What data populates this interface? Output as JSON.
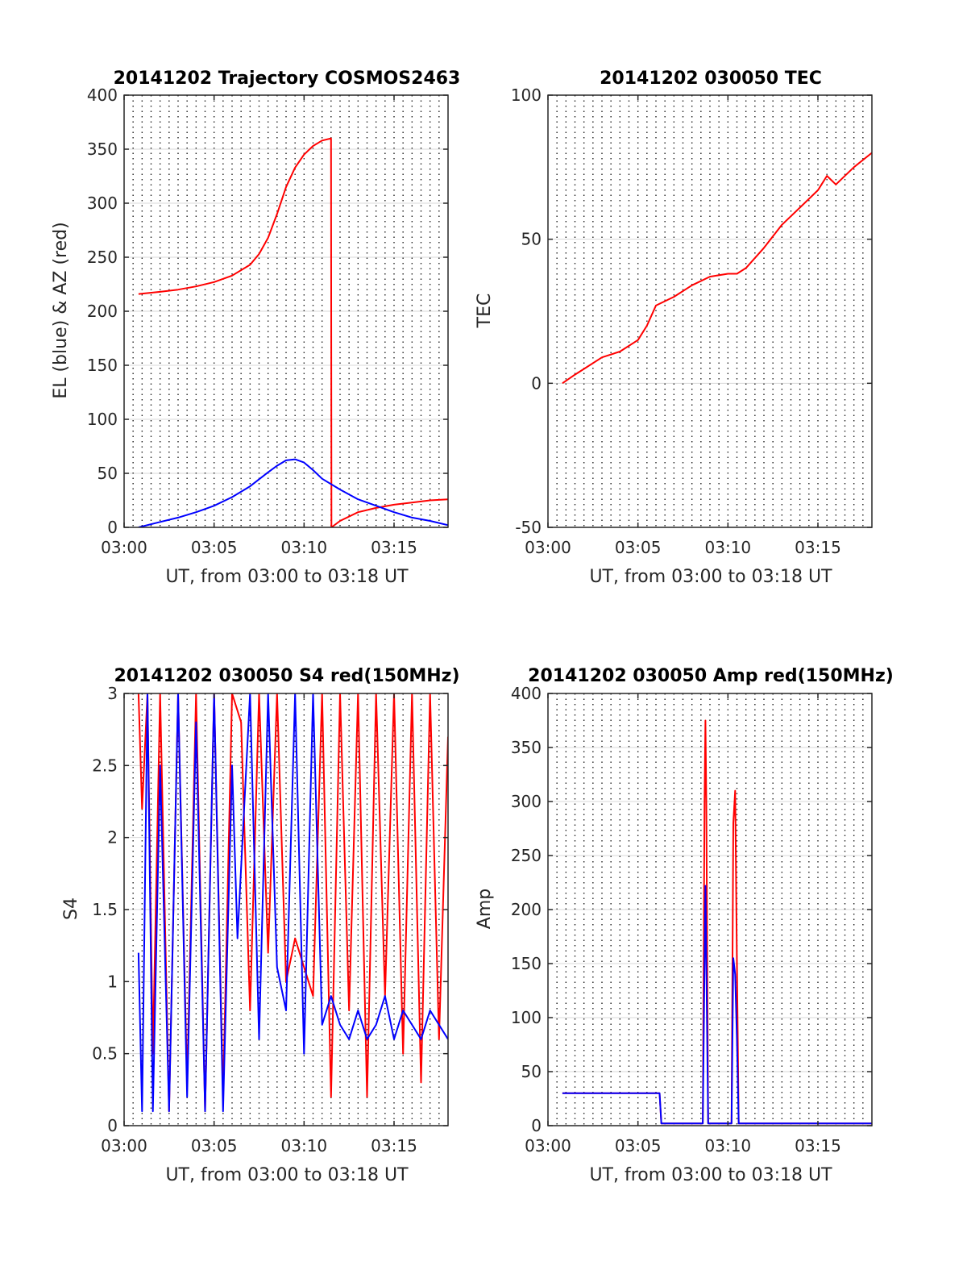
{
  "colors": {
    "red": "#ff0000",
    "blue": "#0000ff",
    "axis": "#262626",
    "grid": "#d9d9d9"
  },
  "chart_data": [
    {
      "type": "line",
      "title": "20141202 Trajectory COSMOS2463",
      "xlabel": "UT, from 03:00 to 03:18 UT",
      "ylabel": "EL (blue) & AZ (red)",
      "xlim": [
        0,
        18
      ],
      "ylim": [
        0,
        400
      ],
      "x_ticks": [
        0,
        5,
        10,
        15
      ],
      "x_tick_labels": [
        "03:00",
        "03:05",
        "03:10",
        "03:15"
      ],
      "y_ticks": [
        0,
        50,
        100,
        150,
        200,
        250,
        300,
        350,
        400
      ],
      "y_tick_labels": [
        "0",
        "50",
        "100",
        "150",
        "200",
        "250",
        "300",
        "350",
        "400"
      ],
      "grid": "dotted vertical every 30 s, solid horizontal at y ticks",
      "series": [
        {
          "color": "#ff0000",
          "x": [
            0.8,
            2,
            3,
            4,
            5,
            6,
            7,
            7.5,
            8,
            8.5,
            9,
            9.5,
            10,
            10.5,
            11,
            11.5,
            11.52,
            12,
            13,
            14,
            15,
            16,
            17,
            18
          ],
          "y": [
            216,
            218,
            220,
            223,
            227,
            233,
            243,
            253,
            268,
            290,
            315,
            333,
            345,
            353,
            358,
            360,
            0,
            6,
            14,
            18,
            21,
            23,
            25,
            26
          ]
        },
        {
          "color": "#0000ff",
          "x": [
            0.8,
            2,
            3,
            4,
            5,
            6,
            7,
            8,
            8.5,
            9,
            9.5,
            10,
            10.5,
            11,
            12,
            13,
            14,
            15,
            16,
            17,
            18
          ],
          "y": [
            0,
            5,
            9,
            14,
            20,
            28,
            38,
            51,
            57,
            62,
            63,
            60,
            53,
            45,
            35,
            26,
            20,
            14,
            9,
            6,
            2
          ]
        }
      ]
    },
    {
      "type": "line",
      "title": "20141202 030050 TEC",
      "xlabel": "UT, from 03:00 to 03:18 UT",
      "ylabel": "TEC",
      "xlim": [
        0,
        18
      ],
      "ylim": [
        -50,
        100
      ],
      "x_ticks": [
        0,
        5,
        10,
        15
      ],
      "x_tick_labels": [
        "03:00",
        "03:05",
        "03:10",
        "03:15"
      ],
      "y_ticks": [
        -50,
        0,
        50,
        100
      ],
      "y_tick_labels": [
        "-50",
        "0",
        "50",
        "100"
      ],
      "grid": "dotted vertical every 30 s, solid horizontal at y ticks",
      "series": [
        {
          "color": "#ff0000",
          "x": [
            0.8,
            1.5,
            2,
            3,
            4,
            5,
            5.5,
            6,
            7,
            8,
            9,
            10,
            10.5,
            11,
            12,
            13,
            14,
            15,
            15.5,
            16,
            17,
            18
          ],
          "y": [
            0,
            3,
            5,
            9,
            11,
            15,
            20,
            27,
            30,
            34,
            37,
            38,
            38,
            40,
            47,
            55,
            61,
            67,
            72,
            69,
            75,
            80
          ]
        }
      ]
    },
    {
      "type": "line",
      "title": "20141202 030050 S4 red(150MHz)",
      "xlabel": "UT, from 03:00 to 03:18 UT",
      "ylabel": "S4",
      "xlim": [
        0,
        18
      ],
      "ylim": [
        0,
        3
      ],
      "x_ticks": [
        0,
        5,
        10,
        15
      ],
      "x_tick_labels": [
        "03:00",
        "03:05",
        "03:10",
        "03:15"
      ],
      "y_ticks": [
        0,
        0.5,
        1,
        1.5,
        2,
        2.5,
        3
      ],
      "y_tick_labels": [
        "0",
        "0.5",
        "1",
        "1.5",
        "2",
        "2.5",
        "3"
      ],
      "grid": "dotted vertical every 30 s, solid horizontal at y ticks",
      "series": [
        {
          "color": "#ff0000",
          "x": [
            0.8,
            1,
            1.3,
            1.6,
            2,
            2.5,
            3,
            3.5,
            4,
            4.5,
            5,
            5.5,
            6,
            6.5,
            7,
            7.5,
            8,
            8.5,
            9,
            9.5,
            10,
            10.5,
            11,
            11.5,
            12,
            12.5,
            13,
            13.5,
            14,
            14.5,
            15,
            15.5,
            16,
            16.5,
            17,
            17.5,
            18
          ],
          "y": [
            3,
            2.2,
            3,
            0.5,
            3,
            0.1,
            3,
            0.3,
            3,
            0.1,
            3,
            0.2,
            3,
            2.8,
            0.8,
            3,
            1.2,
            3,
            1.0,
            1.3,
            1.1,
            0.9,
            3,
            0.2,
            3,
            0.8,
            3,
            0.2,
            3,
            0.9,
            3,
            0.5,
            3,
            0.3,
            3,
            0.6,
            2.7
          ]
        },
        {
          "color": "#0000ff",
          "x": [
            0.8,
            1,
            1.3,
            1.6,
            2,
            2.5,
            3,
            3.5,
            4,
            4.5,
            5,
            5.5,
            6,
            6.3,
            7,
            7.5,
            8,
            8.5,
            9,
            9.5,
            10,
            10.5,
            11,
            11.5,
            12,
            12.5,
            13,
            13.5,
            14,
            14.5,
            15,
            15.5,
            16,
            16.5,
            17,
            17.5,
            18
          ],
          "y": [
            1.2,
            0.1,
            3,
            0.1,
            2.5,
            0.1,
            3,
            0.2,
            2.8,
            0.1,
            3,
            0.1,
            2.5,
            1.3,
            3,
            0.6,
            3,
            1.1,
            0.8,
            3,
            0.5,
            3,
            0.7,
            0.9,
            0.7,
            0.6,
            0.8,
            0.6,
            0.7,
            0.9,
            0.6,
            0.8,
            0.7,
            0.6,
            0.8,
            0.7,
            0.6
          ]
        }
      ]
    },
    {
      "type": "line",
      "title": "20141202 030050 Amp red(150MHz)",
      "xlabel": "UT, from 03:00 to 03:18 UT",
      "ylabel": "Amp",
      "xlim": [
        0,
        18
      ],
      "ylim": [
        0,
        400
      ],
      "x_ticks": [
        0,
        5,
        10,
        15
      ],
      "x_tick_labels": [
        "03:00",
        "03:05",
        "03:10",
        "03:15"
      ],
      "y_ticks": [
        0,
        50,
        100,
        150,
        200,
        250,
        300,
        350,
        400
      ],
      "y_tick_labels": [
        "0",
        "50",
        "100",
        "150",
        "200",
        "250",
        "300",
        "350",
        "400"
      ],
      "grid": "dotted vertical every 30 s, solid horizontal at y ticks",
      "series": [
        {
          "color": "#ff0000",
          "x": [
            0.8,
            6.2,
            6.3,
            8.6,
            8.7,
            8.75,
            8.8,
            8.9,
            9.0,
            10.2,
            10.3,
            10.4,
            10.5,
            10.6,
            10.7,
            18
          ],
          "y": [
            30,
            30,
            2,
            2,
            300,
            375,
            300,
            2,
            2,
            2,
            280,
            310,
            150,
            2,
            2,
            2
          ]
        },
        {
          "color": "#0000ff",
          "x": [
            0.8,
            6.2,
            6.3,
            8.6,
            8.7,
            8.75,
            8.8,
            8.9,
            9.0,
            10.2,
            10.3,
            10.4,
            10.5,
            10.6,
            10.7,
            18
          ],
          "y": [
            30,
            30,
            2,
            2,
            150,
            222,
            150,
            2,
            2,
            2,
            155,
            140,
            80,
            2,
            2,
            2
          ]
        }
      ]
    }
  ]
}
